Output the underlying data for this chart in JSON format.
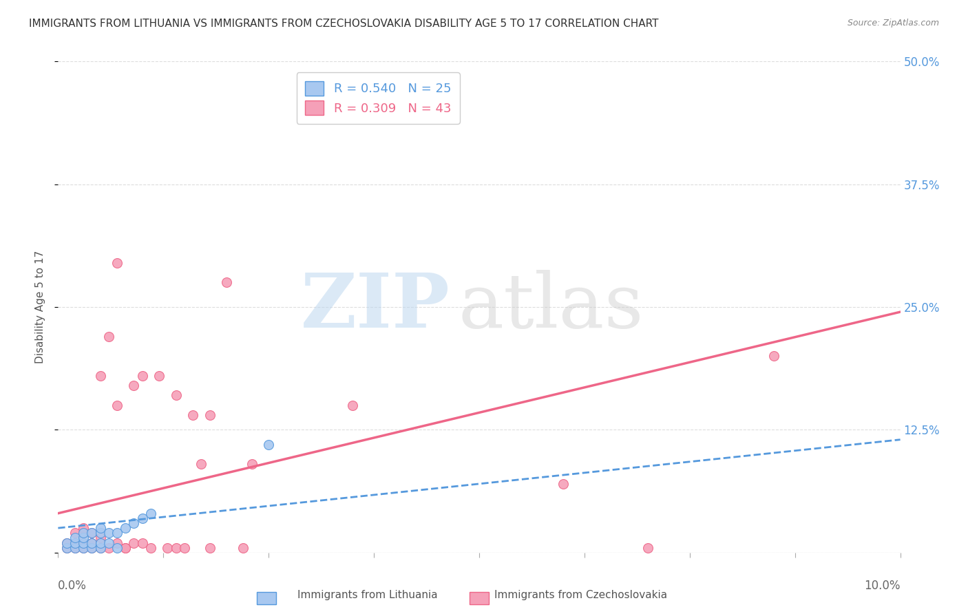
{
  "title": "IMMIGRANTS FROM LITHUANIA VS IMMIGRANTS FROM CZECHOSLOVAKIA DISABILITY AGE 5 TO 17 CORRELATION CHART",
  "source": "Source: ZipAtlas.com",
  "ylabel_label": "Disability Age 5 to 17",
  "right_yticks": [
    0.0,
    0.125,
    0.25,
    0.375,
    0.5
  ],
  "right_yticklabels": [
    "",
    "12.5%",
    "25.0%",
    "37.5%",
    "50.0%"
  ],
  "xlim": [
    0.0,
    0.1
  ],
  "ylim": [
    0.0,
    0.5
  ],
  "legend_label_lith": "R = 0.540   N = 25",
  "legend_label_czech": "R = 0.309   N = 43",
  "lithuania_scatter": [
    [
      0.001,
      0.005
    ],
    [
      0.001,
      0.01
    ],
    [
      0.002,
      0.005
    ],
    [
      0.002,
      0.01
    ],
    [
      0.002,
      0.015
    ],
    [
      0.003,
      0.005
    ],
    [
      0.003,
      0.01
    ],
    [
      0.003,
      0.015
    ],
    [
      0.003,
      0.02
    ],
    [
      0.004,
      0.005
    ],
    [
      0.004,
      0.01
    ],
    [
      0.004,
      0.02
    ],
    [
      0.005,
      0.005
    ],
    [
      0.005,
      0.01
    ],
    [
      0.005,
      0.02
    ],
    [
      0.005,
      0.025
    ],
    [
      0.006,
      0.01
    ],
    [
      0.006,
      0.02
    ],
    [
      0.007,
      0.005
    ],
    [
      0.007,
      0.02
    ],
    [
      0.008,
      0.025
    ],
    [
      0.009,
      0.03
    ],
    [
      0.01,
      0.035
    ],
    [
      0.011,
      0.04
    ],
    [
      0.025,
      0.11
    ]
  ],
  "czechoslovakia_scatter": [
    [
      0.001,
      0.005
    ],
    [
      0.001,
      0.01
    ],
    [
      0.002,
      0.005
    ],
    [
      0.002,
      0.01
    ],
    [
      0.002,
      0.02
    ],
    [
      0.003,
      0.005
    ],
    [
      0.003,
      0.01
    ],
    [
      0.003,
      0.02
    ],
    [
      0.003,
      0.025
    ],
    [
      0.004,
      0.005
    ],
    [
      0.004,
      0.01
    ],
    [
      0.004,
      0.02
    ],
    [
      0.005,
      0.005
    ],
    [
      0.005,
      0.015
    ],
    [
      0.005,
      0.18
    ],
    [
      0.006,
      0.005
    ],
    [
      0.006,
      0.22
    ],
    [
      0.007,
      0.01
    ],
    [
      0.007,
      0.15
    ],
    [
      0.007,
      0.295
    ],
    [
      0.008,
      0.005
    ],
    [
      0.008,
      0.005
    ],
    [
      0.009,
      0.01
    ],
    [
      0.009,
      0.17
    ],
    [
      0.01,
      0.01
    ],
    [
      0.01,
      0.18
    ],
    [
      0.011,
      0.005
    ],
    [
      0.012,
      0.18
    ],
    [
      0.013,
      0.005
    ],
    [
      0.014,
      0.005
    ],
    [
      0.014,
      0.16
    ],
    [
      0.015,
      0.005
    ],
    [
      0.016,
      0.14
    ],
    [
      0.017,
      0.09
    ],
    [
      0.018,
      0.005
    ],
    [
      0.018,
      0.14
    ],
    [
      0.02,
      0.275
    ],
    [
      0.022,
      0.005
    ],
    [
      0.023,
      0.09
    ],
    [
      0.035,
      0.15
    ],
    [
      0.06,
      0.07
    ],
    [
      0.07,
      0.005
    ],
    [
      0.085,
      0.2
    ]
  ],
  "lithuania_line_x": [
    0.0,
    0.1
  ],
  "lithuania_line_y": [
    0.025,
    0.115
  ],
  "czechoslovakia_line_x": [
    0.0,
    0.1
  ],
  "czechoslovakia_line_y": [
    0.04,
    0.245
  ],
  "dot_size": 100,
  "lithuania_color": "#a8c8f0",
  "czechoslovakia_color": "#f5a0b8",
  "lithuania_line_color": "#5599dd",
  "czechoslovakia_line_color": "#ee6688",
  "background_color": "#ffffff",
  "grid_color": "#dddddd",
  "title_fontsize": 11,
  "axis_label_fontsize": 11,
  "tick_fontsize": 12,
  "source_fontsize": 9,
  "bottom_label_lith": "Immigrants from Lithuania",
  "bottom_label_czech": "Immigrants from Czechoslovakia"
}
